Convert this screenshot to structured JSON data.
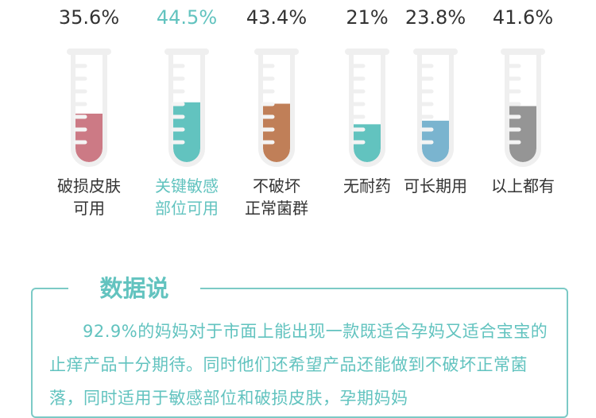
{
  "chart_data": {
    "type": "bar",
    "style": "test-tube fill",
    "categories": [
      [
        "破损皮肤",
        "可用"
      ],
      [
        "关键敏感",
        "部位可用"
      ],
      [
        "不破坏",
        "正常菌群"
      ],
      [
        "无耐药"
      ],
      [
        "可长期用"
      ],
      [
        "以上都有"
      ]
    ],
    "values": [
      35.6,
      44.5,
      43.4,
      21,
      23.8,
      41.6
    ],
    "labels": [
      "35.6%",
      "44.5%",
      "43.4%",
      "21%",
      "23.8%",
      "41.6%"
    ],
    "colors": [
      "#cc7a85",
      "#62c3bf",
      "#c07f58",
      "#62c3bf",
      "#7ab4cf",
      "#959595"
    ],
    "label_colors": [
      "#333333",
      "#62c3bf",
      "#333333",
      "#333333",
      "#333333",
      "#333333"
    ]
  },
  "panel": {
    "title": "数据说",
    "text": "92.9%的妈妈对于市面上能出现一款既适合孕妈又适合宝宝的止痒产品十分期待。同时他们还希望产品还能做到不破坏正常菌落，同时适用于敏感部位和破损皮肤，孕期妈妈"
  }
}
